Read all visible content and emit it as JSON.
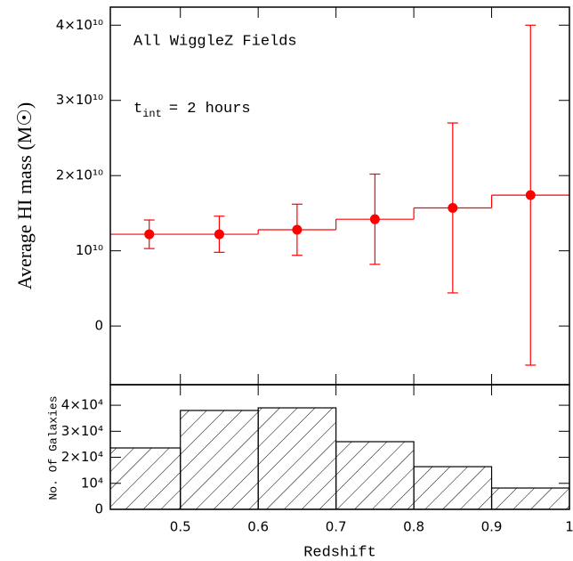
{
  "chart_data": [
    {
      "type": "errorbar",
      "ylabel": "Average HI mass (M☉)",
      "annotations": [
        {
          "text": "All WiggleZ Fields"
        },
        {
          "text": "t",
          "subscript": "int",
          "suffix": "= 2 hours"
        }
      ],
      "x": [
        0.46,
        0.55,
        0.65,
        0.75,
        0.85,
        0.95
      ],
      "series": [
        {
          "color": "#ff0000",
          "values": [
            12200000000,
            12200000000,
            12800000000,
            14200000000,
            15700000000,
            17400000000
          ],
          "errors": [
            1900000000,
            2400000000,
            3400000000,
            6000000000,
            11300000000,
            22600000000
          ]
        }
      ],
      "bins": [
        0.4,
        0.5,
        0.6,
        0.7,
        0.8,
        0.9,
        1
      ],
      "xlim": [
        0.41,
        1
      ],
      "ylim": [
        -7800000000,
        42400000000
      ],
      "yticks": [
        0,
        {
          "value": 10000000000,
          "label": "10¹⁰"
        },
        {
          "value": 20000000000,
          "label": "2×10¹⁰"
        },
        {
          "value": 30000000000,
          "label": "3×10¹⁰"
        },
        {
          "value": 40000000000,
          "label": "4×10¹⁰"
        }
      ]
    },
    {
      "type": "histogram",
      "ylabel": "No. Of Galaxies",
      "xlabel": "Redshift",
      "bins": [
        0.4,
        0.5,
        0.6,
        0.7,
        0.8,
        0.9,
        1
      ],
      "values": [
        23600,
        38000,
        39000,
        26000,
        16400,
        8200
      ],
      "hatch": true,
      "xlim": [
        0.41,
        1
      ],
      "xticks": [
        0.5,
        0.6,
        0.7,
        0.8,
        0.9,
        1
      ],
      "ylim": [
        0,
        47900
      ],
      "yticks": [
        0,
        {
          "value": 10000,
          "label": "10⁴"
        },
        {
          "value": 20000,
          "label": "2×10⁴"
        },
        {
          "value": 30000,
          "label": "3×10⁴"
        },
        {
          "value": 40000,
          "label": "4×10⁴"
        }
      ]
    }
  ]
}
